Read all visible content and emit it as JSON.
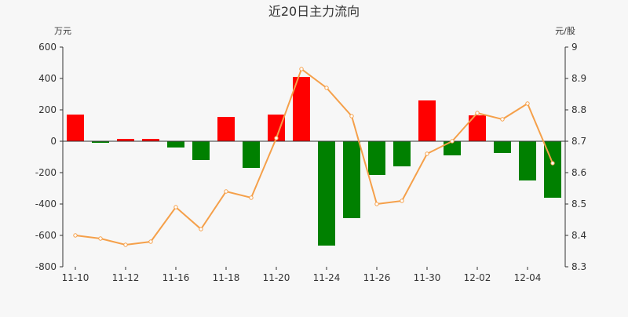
{
  "chart_data": {
    "type": "bar",
    "title": "近20日主力流向",
    "left_unit": "万元",
    "right_unit": "元/股",
    "x_ticks": [
      "11-10",
      "11-12",
      "11-16",
      "11-18",
      "11-20",
      "11-24",
      "11-26",
      "11-30",
      "12-02",
      "12-04"
    ],
    "left_ticks": [
      "600",
      "400",
      "200",
      "0",
      "-200",
      "-400",
      "-600",
      "-800"
    ],
    "right_ticks": [
      "9",
      "8.9",
      "8.8",
      "8.7",
      "8.6",
      "8.5",
      "8.4",
      "8.3"
    ],
    "ylim_left": [
      -800,
      600
    ],
    "ylim_right": [
      8.3,
      9.0
    ],
    "grid": false,
    "colors": {
      "positive": "#ff0000",
      "negative": "#008000",
      "line": "#f5a04a"
    },
    "series": [
      {
        "axis": "left",
        "type": "bar",
        "values": [
          170,
          -10,
          15,
          15,
          -40,
          -120,
          155,
          -170,
          170,
          410,
          -665,
          -490,
          -215,
          -160,
          260,
          -90,
          165,
          -75,
          -250,
          -360
        ]
      },
      {
        "axis": "right",
        "type": "line",
        "values": [
          8.4,
          8.39,
          8.37,
          8.38,
          8.49,
          8.42,
          8.54,
          8.52,
          8.71,
          8.93,
          8.87,
          8.78,
          8.5,
          8.51,
          8.66,
          8.7,
          8.79,
          8.77,
          8.82,
          8.63
        ]
      }
    ]
  }
}
